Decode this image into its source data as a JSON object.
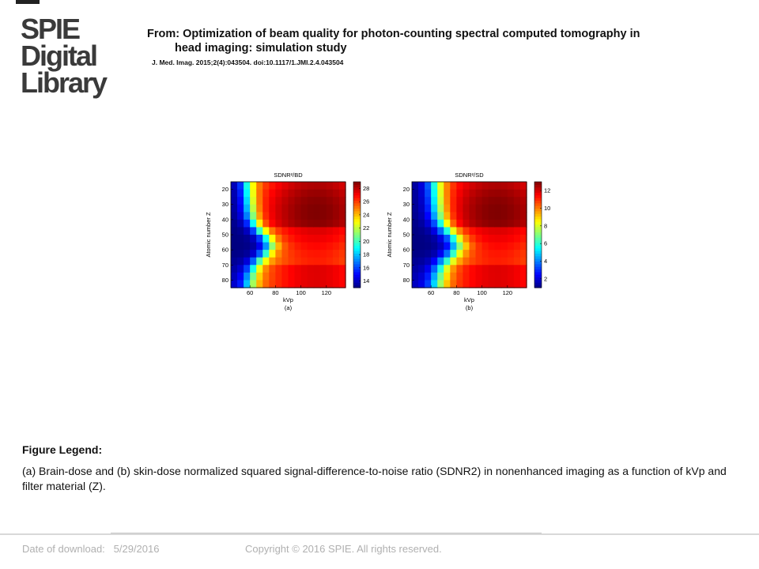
{
  "logo": {
    "line1": "SPIE",
    "line2": "Digital",
    "line3": "Library"
  },
  "header": {
    "title_line1": "From: Optimization of beam quality for photon-counting spectral computed tomography in",
    "title_line2": "head imaging: simulation study",
    "citation": "J. Med. Imag. 2015;2(4):043504. doi:10.1117/1.JMI.2.4.043504"
  },
  "chart_data": [
    {
      "type": "heatmap",
      "title": "SDNR²/BD",
      "xlabel": "kVp",
      "ylabel": "Atomic number Z",
      "panel_label": "(a)",
      "x_ticks": [
        60,
        80,
        100,
        120
      ],
      "y_ticks": [
        20,
        30,
        40,
        50,
        60,
        70,
        80
      ],
      "xlim": [
        45,
        135
      ],
      "ylim": [
        15,
        85
      ],
      "colorbar_ticks": [
        14,
        16,
        18,
        20,
        22,
        24,
        26,
        28
      ],
      "colorbar_range": [
        13,
        29
      ]
    },
    {
      "type": "heatmap",
      "title": "SDNR²/SD",
      "xlabel": "kVp",
      "ylabel": "Atomic number Z",
      "panel_label": "(b)",
      "x_ticks": [
        60,
        80,
        100,
        120
      ],
      "y_ticks": [
        20,
        30,
        40,
        50,
        60,
        70,
        80
      ],
      "xlim": [
        45,
        135
      ],
      "ylim": [
        15,
        85
      ],
      "colorbar_ticks": [
        2,
        4,
        6,
        8,
        10,
        12
      ],
      "colorbar_range": [
        1,
        13
      ]
    }
  ],
  "legend": {
    "heading": "Figure Legend:",
    "text": "(a) Brain-dose and (b) skin-dose normalized squared signal-difference-to-noise ratio (SDNR2) in nonenhanced imaging as a function of kVp and filter material (Z)."
  },
  "footer": {
    "date_label": "Date of download:",
    "date_value": "5/29/2016",
    "copyright": "Copyright © 2016 SPIE. All rights reserved."
  }
}
